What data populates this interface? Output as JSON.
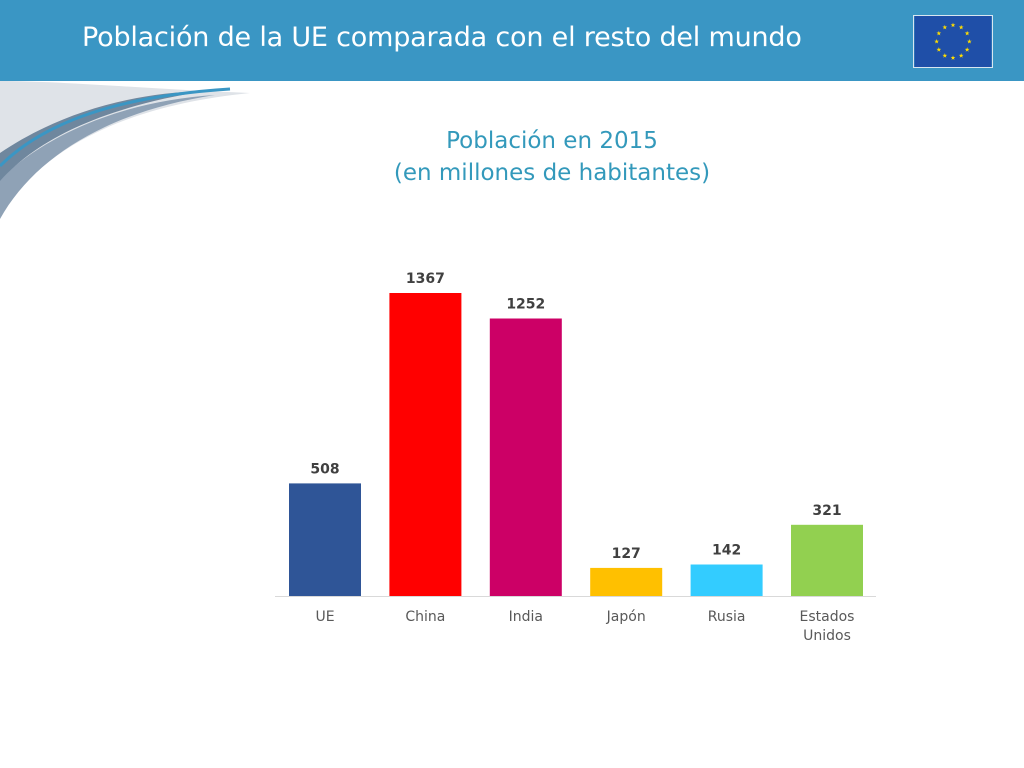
{
  "header": {
    "title": "Población de la UE comparada con el resto del mundo",
    "background_color": "#3a96c4",
    "logo_icon": "eu-flag-icon",
    "flag_blue": "#1f4fa8",
    "star_color": "#ffdd00"
  },
  "chart_data": {
    "type": "bar",
    "title": "Población en 2015",
    "subtitle": "(en millones de habitantes)",
    "categories": [
      [
        "UE"
      ],
      [
        "China"
      ],
      [
        "India"
      ],
      [
        "Japón"
      ],
      [
        "Rusia"
      ],
      [
        "Estados",
        "Unidos"
      ]
    ],
    "values": [
      508,
      1367,
      1252,
      127,
      142,
      321
    ],
    "labels": [
      "508",
      "1367",
      "1252",
      "127",
      "142",
      "321"
    ],
    "colors": [
      "#2f5597",
      "#ff0000",
      "#cc0066",
      "#ffc000",
      "#33ccff",
      "#92d050"
    ],
    "xlabel": "",
    "ylabel": "",
    "ylim": [
      0,
      1367
    ],
    "grid": false,
    "legend": "none",
    "data_labels": true
  }
}
